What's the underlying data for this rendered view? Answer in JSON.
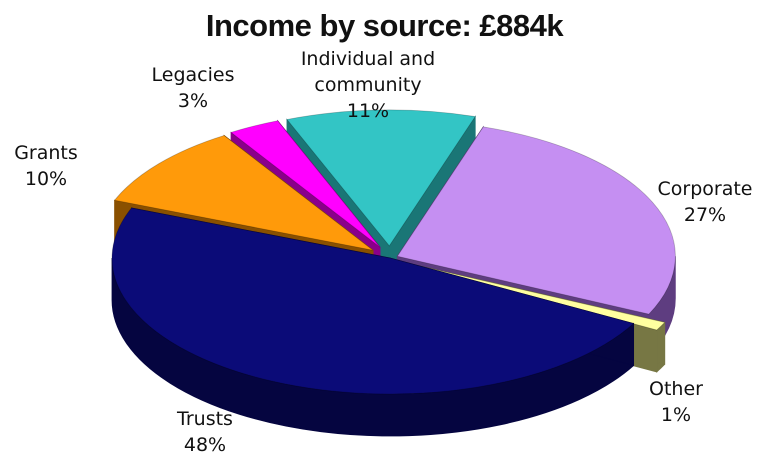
{
  "chart_data": {
    "type": "pie",
    "title": "Income by source: £884k",
    "slices": [
      {
        "name": "Corporate",
        "label": "Corporate",
        "percent_text": "27%",
        "value": 27,
        "color": "#c58ff2",
        "side_color": "#5e3d80"
      },
      {
        "name": "Other",
        "label": "Other",
        "percent_text": "1%",
        "value": 1,
        "color": "#ffffa0",
        "side_color": "#777744"
      },
      {
        "name": "Trusts",
        "label": "Trusts",
        "percent_text": "48%",
        "value": 48,
        "color": "#0b0b78",
        "side_color": "#050540"
      },
      {
        "name": "Grants",
        "label": "Grants",
        "percent_text": "10%",
        "value": 10,
        "color": "#ff9a0a",
        "side_color": "#8a5000"
      },
      {
        "name": "Legacies",
        "label": "Legacies",
        "percent_text": "3%",
        "value": 3,
        "color": "#ff00ff",
        "side_color": "#8a008a"
      },
      {
        "name": "Individual and community",
        "label_lines": [
          "Individual and",
          "community"
        ],
        "percent_text": "11%",
        "value": 11,
        "color": "#33c5c5",
        "side_color": "#1a7676"
      }
    ],
    "exploded": true,
    "three_d": true,
    "legend": "none"
  }
}
